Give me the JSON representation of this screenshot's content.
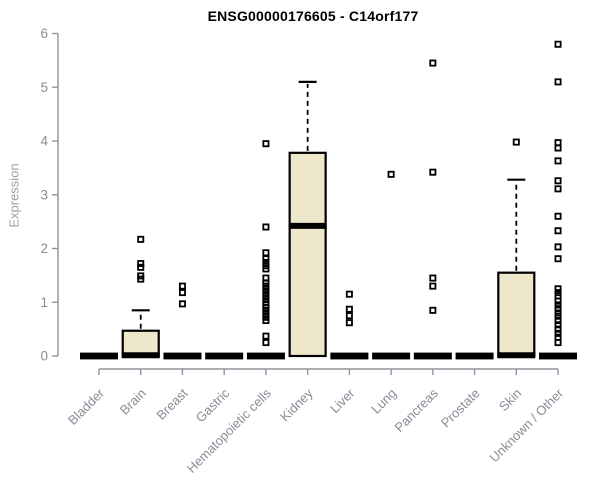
{
  "chart_data": {
    "type": "boxplot",
    "title": "ENSG00000176605 - C14orf177",
    "ylabel": "Expression",
    "xlabel": "",
    "ylim": [
      0,
      6
    ],
    "yticks": [
      0,
      1,
      2,
      3,
      4,
      5,
      6
    ],
    "grid": false,
    "legend": "none",
    "categories": [
      "Bladder",
      "Brain",
      "Breast",
      "Gastric",
      "Hematopoietic cells",
      "Kidney",
      "Liver",
      "Lung",
      "Pancreas",
      "Prostate",
      "Skin",
      "Unknown / Other"
    ],
    "boxes": [
      {
        "category": "Bladder",
        "q1": 0,
        "median": 0,
        "q3": 0,
        "whisker_low": 0,
        "whisker_high": 0,
        "outliers": []
      },
      {
        "category": "Brain",
        "q1": 0,
        "median": 0,
        "q3": 0.47,
        "whisker_low": 0,
        "whisker_high": 0.85,
        "outliers": [
          2.17,
          1.72,
          1.65,
          1.49,
          1.43
        ]
      },
      {
        "category": "Breast",
        "q1": 0,
        "median": 0,
        "q3": 0,
        "whisker_low": 0,
        "whisker_high": 0,
        "outliers": [
          1.3,
          1.18,
          0.97
        ]
      },
      {
        "category": "Gastric",
        "q1": 0,
        "median": 0,
        "q3": 0,
        "whisker_low": 0,
        "whisker_high": 0,
        "outliers": []
      },
      {
        "category": "Hematopoietic cells",
        "q1": 0,
        "median": 0,
        "q3": 0,
        "whisker_low": 0,
        "whisker_high": 0,
        "outliers": [
          3.95,
          2.4,
          1.92,
          1.81,
          1.74,
          1.68,
          1.62,
          1.45,
          1.36,
          1.3,
          1.24,
          1.18,
          1.12,
          1.06,
          1.0,
          0.95,
          0.9,
          0.84,
          0.78,
          0.72,
          0.66,
          0.37,
          0.25
        ]
      },
      {
        "category": "Kidney",
        "q1": 0,
        "median": 2.42,
        "q3": 3.78,
        "whisker_low": 0,
        "whisker_high": 5.1,
        "outliers": []
      },
      {
        "category": "Liver",
        "q1": 0,
        "median": 0,
        "q3": 0,
        "whisker_low": 0,
        "whisker_high": 0,
        "outliers": [
          1.15,
          0.87,
          0.75,
          0.62
        ]
      },
      {
        "category": "Lung",
        "q1": 0,
        "median": 0,
        "q3": 0,
        "whisker_low": 0,
        "whisker_high": 0,
        "outliers": [
          3.38
        ]
      },
      {
        "category": "Pancreas",
        "q1": 0,
        "median": 0,
        "q3": 0,
        "whisker_low": 0,
        "whisker_high": 0,
        "outliers": [
          5.45,
          3.42,
          1.45,
          1.3,
          0.85
        ]
      },
      {
        "category": "Prostate",
        "q1": 0,
        "median": 0,
        "q3": 0,
        "whisker_low": 0,
        "whisker_high": 0,
        "outliers": []
      },
      {
        "category": "Skin",
        "q1": 0,
        "median": 0,
        "q3": 1.55,
        "whisker_low": 0,
        "whisker_high": 3.28,
        "outliers": [
          3.98
        ]
      },
      {
        "category": "Unknown / Other",
        "q1": 0,
        "median": 0,
        "q3": 0,
        "whisker_low": 0,
        "whisker_high": 0,
        "outliers": [
          5.8,
          5.1,
          3.97,
          3.87,
          3.63,
          3.26,
          3.11,
          2.6,
          2.33,
          2.03,
          1.81,
          1.25,
          1.18,
          1.12,
          1.02,
          0.95,
          0.88,
          0.8,
          0.74,
          0.66,
          0.58,
          0.5,
          0.42,
          0.35,
          0.25
        ]
      }
    ],
    "colors": {
      "box_fill": "#ede7cb",
      "box_stroke": "#000000",
      "axis": "#8f959d",
      "tick_label": "#878d96",
      "ylabel_color": "#9aa0a8",
      "title": "#000000",
      "background": "#ffffff"
    }
  }
}
